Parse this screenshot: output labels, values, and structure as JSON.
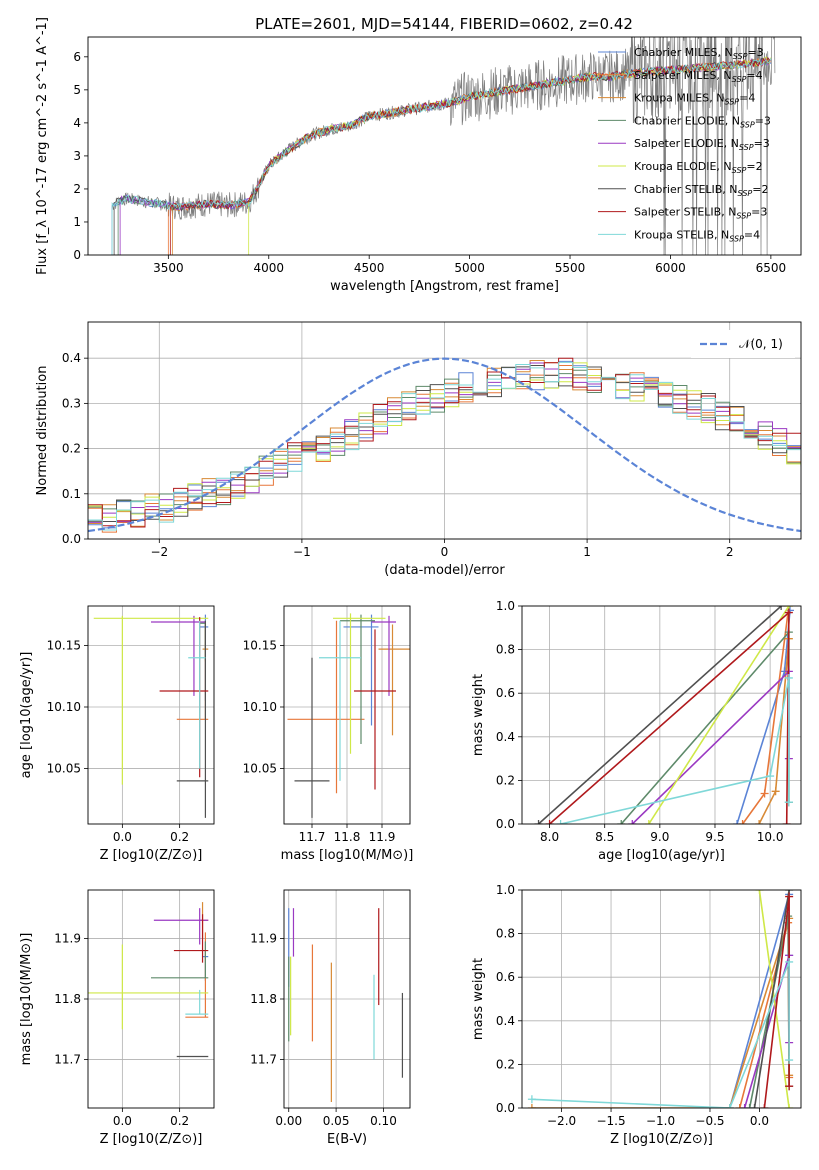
{
  "figure": {
    "title": "PLATE=2601, MJD=54144, FIBERID=0602, z=0.42"
  },
  "series": [
    {
      "name": "Chabrier MILES",
      "nssp": "3",
      "color": "#5b84d6"
    },
    {
      "name": "Salpeter MILES",
      "nssp": "4",
      "color": "#e7773a"
    },
    {
      "name": "Kroupa MILES",
      "nssp": "4",
      "color": "#d88a36"
    },
    {
      "name": "Chabrier ELODIE",
      "nssp": "3",
      "color": "#5e8a6a"
    },
    {
      "name": "Salpeter ELODIE",
      "nssp": "3",
      "color": "#9a39c2"
    },
    {
      "name": "Kroupa ELODIE",
      "nssp": "2",
      "color": "#cfe847"
    },
    {
      "name": "Chabrier STELIB",
      "nssp": "2",
      "color": "#505050"
    },
    {
      "name": "Salpeter STELIB",
      "nssp": "3",
      "color": "#b0191c"
    },
    {
      "name": "Kroupa STELIB",
      "nssp": "4",
      "color": "#7fd8d8"
    }
  ],
  "chart_data": [
    {
      "id": "spectrum",
      "type": "line",
      "title": "PLATE=2601, MJD=54144, FIBERID=0602, z=0.42",
      "xlabel": "wavelength [Angstrom, rest frame]",
      "ylabel": "Flux [f_λ 10^-17 erg cm^-2 s^-1 A^-1]",
      "xlim": [
        3100,
        6650
      ],
      "ylim": [
        0,
        6.6
      ],
      "xticks": [
        3500,
        4000,
        4500,
        5000,
        5500,
        6000,
        6500
      ],
      "yticks": [
        0,
        1,
        2,
        3,
        4,
        5,
        6
      ],
      "continuum": {
        "x": [
          3220,
          3260,
          3300,
          3400,
          3500,
          3550,
          3700,
          3800,
          3900,
          3950,
          4000,
          4100,
          4200,
          4300,
          4400,
          4500,
          4600,
          4700,
          4800,
          4900,
          5000,
          5100,
          5200,
          5300,
          5400,
          5500,
          5600,
          5700,
          5800,
          5900,
          6000,
          6100,
          6200,
          6300,
          6400,
          6500
        ],
        "y": [
          1.5,
          1.65,
          1.7,
          1.6,
          1.5,
          1.45,
          1.55,
          1.5,
          1.6,
          2.1,
          2.7,
          3.2,
          3.6,
          3.8,
          3.9,
          4.2,
          4.3,
          4.4,
          4.5,
          4.6,
          4.8,
          4.9,
          5.0,
          5.1,
          5.2,
          5.3,
          5.4,
          5.4,
          5.5,
          5.55,
          5.6,
          5.65,
          5.7,
          5.75,
          5.8,
          5.9
        ]
      },
      "legend_position": "upper right",
      "grid": false
    },
    {
      "id": "residuals",
      "type": "histogram",
      "xlabel": "(data-model)/error",
      "ylabel": "Normed distribution",
      "xlim": [
        -2.5,
        2.5
      ],
      "ylim": [
        0,
        0.48
      ],
      "xticks": [
        -2,
        -1,
        0,
        1,
        2
      ],
      "yticks": [
        0.0,
        0.1,
        0.2,
        0.3,
        0.4
      ],
      "bin_width": 0.1,
      "bin_start": -2.5,
      "base_values": [
        0.05,
        0.05,
        0.055,
        0.06,
        0.065,
        0.07,
        0.08,
        0.09,
        0.1,
        0.11,
        0.12,
        0.135,
        0.15,
        0.165,
        0.18,
        0.19,
        0.2,
        0.215,
        0.23,
        0.25,
        0.265,
        0.28,
        0.295,
        0.305,
        0.315,
        0.325,
        0.335,
        0.345,
        0.35,
        0.355,
        0.36,
        0.36,
        0.36,
        0.365,
        0.36,
        0.355,
        0.35,
        0.345,
        0.34,
        0.33,
        0.32,
        0.31,
        0.3,
        0.29,
        0.275,
        0.26,
        0.245,
        0.23,
        0.215,
        0.2,
        0.19,
        0.18,
        0.17,
        0.16,
        0.15,
        0.14,
        0.13,
        0.12,
        0.11,
        0.1,
        0.095,
        0.09,
        0.085,
        0.08,
        0.075,
        0.07,
        0.07,
        0.065,
        0.06,
        0.06
      ],
      "normal_label": "𝒩(0, 1)",
      "legend_position": "upper right",
      "grid": true
    },
    {
      "id": "age_vs_Z",
      "type": "errorbar",
      "xlabel": "Z [log10(Z/Z⊙)]",
      "ylabel": "age  [log10(age/yr)]",
      "xlim": [
        -0.12,
        0.32
      ],
      "ylim": [
        10.005,
        10.182
      ],
      "xticks": [
        0.0,
        0.2
      ],
      "yticks": [
        10.05,
        10.1,
        10.15
      ],
      "points": [
        {
          "x": 0.29,
          "y": 10.165,
          "xerr": [
            0.02,
            0.01
          ],
          "yerr": [
            0.06,
            0.01
          ]
        },
        {
          "x": 0.29,
          "y": 10.09,
          "xerr": [
            0.1,
            0.01
          ],
          "yerr": [
            0.0,
            0.08
          ]
        },
        {
          "x": 0.29,
          "y": 10.147,
          "xerr": [
            0.01,
            0.01
          ],
          "yerr": [
            0.01,
            0.02
          ]
        },
        {
          "x": 0.29,
          "y": 10.168,
          "xerr": [
            0.02,
            0.0
          ],
          "yerr": [
            0.03,
            0.002
          ]
        },
        {
          "x": 0.25,
          "y": 10.169,
          "xerr": [
            0.15,
            0.04
          ],
          "yerr": [
            0.06,
            0.005
          ]
        },
        {
          "x": 0.0,
          "y": 10.172,
          "xerr": [
            0.1,
            0.3
          ],
          "yerr": [
            0.135,
            0.002
          ]
        },
        {
          "x": 0.29,
          "y": 10.04,
          "xerr": [
            0.1,
            0.01
          ],
          "yerr": [
            0.03,
            0.13
          ]
        },
        {
          "x": 0.27,
          "y": 10.113,
          "xerr": [
            0.14,
            0.03
          ],
          "yerr": [
            0.07,
            0.06
          ]
        },
        {
          "x": 0.27,
          "y": 10.14,
          "xerr": [
            0.04,
            0.02
          ],
          "yerr": [
            0.09,
            0.03
          ]
        }
      ],
      "grid": true
    },
    {
      "id": "age_vs_mass",
      "type": "errorbar",
      "xlabel": "mass [log10(M/M⊙)]",
      "ylabel": "",
      "xlim": [
        11.62,
        11.98
      ],
      "ylim": [
        10.005,
        10.182
      ],
      "xticks": [
        11.7,
        11.8,
        11.9
      ],
      "yticks": [
        10.05,
        10.1,
        10.15
      ],
      "points": [
        {
          "x": 11.87,
          "y": 10.165,
          "xerr": [
            0.08,
            0.02
          ],
          "yerr": [
            0.08,
            0.01
          ]
        },
        {
          "x": 11.77,
          "y": 10.09,
          "xerr": [
            0.14,
            0.08
          ],
          "yerr": [
            0.06,
            0.08
          ]
        },
        {
          "x": 11.93,
          "y": 10.147,
          "xerr": [
            0.04,
            0.05
          ],
          "yerr": [
            0.07,
            0.02
          ]
        },
        {
          "x": 11.84,
          "y": 10.17,
          "xerr": [
            0.06,
            0.04
          ],
          "yerr": [
            0.1,
            0.005
          ]
        },
        {
          "x": 11.92,
          "y": 10.169,
          "xerr": [
            0.05,
            0.02
          ],
          "yerr": [
            0.06,
            0.005
          ]
        },
        {
          "x": 11.81,
          "y": 10.172,
          "xerr": [
            0.05,
            0.1
          ],
          "yerr": [
            0.11,
            0.004
          ]
        },
        {
          "x": 11.7,
          "y": 10.04,
          "xerr": [
            0.05,
            0.05
          ],
          "yerr": [
            0.03,
            0.1
          ]
        },
        {
          "x": 11.88,
          "y": 10.113,
          "xerr": [
            0.06,
            0.06
          ],
          "yerr": [
            0.08,
            0.05
          ]
        },
        {
          "x": 11.78,
          "y": 10.14,
          "xerr": [
            0.06,
            0.06
          ],
          "yerr": [
            0.1,
            0.03
          ]
        }
      ],
      "grid": true
    },
    {
      "id": "massweight_vs_age",
      "type": "line",
      "xlabel": "age  [log10(age/yr)]",
      "ylabel": "mass weight",
      "xlim": [
        7.75,
        10.28
      ],
      "ylim": [
        0,
        1
      ],
      "xticks": [
        8.0,
        8.5,
        9.0,
        9.5,
        10.0
      ],
      "yticks": [
        0.0,
        0.2,
        0.4,
        0.6,
        0.8,
        1.0
      ],
      "lines": [
        {
          "x": [
            9.7,
            10.13,
            10.18
          ],
          "y": [
            0.0,
            0.7,
            0.98
          ]
        },
        {
          "x": [
            9.75,
            9.95,
            10.17
          ],
          "y": [
            0.0,
            0.14,
            1.0
          ]
        },
        {
          "x": [
            9.9,
            10.05,
            10.17
          ],
          "y": [
            0.0,
            0.15,
            0.85
          ]
        },
        {
          "x": [
            8.65,
            10.17,
            10.17
          ],
          "y": [
            0.0,
            0.88,
            0.1
          ]
        },
        {
          "x": [
            8.75,
            10.17,
            10.17
          ],
          "y": [
            0.0,
            0.7,
            0.3
          ]
        },
        {
          "x": [
            8.9,
            10.17
          ],
          "y": [
            0.0,
            1.0
          ]
        },
        {
          "x": [
            7.9,
            10.1
          ],
          "y": [
            0.0,
            1.0
          ]
        },
        {
          "x": [
            8.0,
            10.17,
            10.15
          ],
          "y": [
            0.0,
            0.97,
            0.0
          ]
        },
        {
          "x": [
            8.1,
            10.0,
            10.17,
            10.17
          ],
          "y": [
            0.0,
            0.22,
            0.67,
            0.1
          ]
        }
      ],
      "grid": true
    },
    {
      "id": "mass_vs_Z",
      "type": "errorbar",
      "xlabel": "Z [log10(Z/Z⊙)]",
      "ylabel": "mass [log10(M/M⊙)]",
      "xlim": [
        -0.12,
        0.32
      ],
      "ylim": [
        11.62,
        11.98
      ],
      "xticks": [
        0.0,
        0.2
      ],
      "yticks": [
        11.7,
        11.8,
        11.9
      ],
      "points": [
        {
          "x": 0.29,
          "y": 11.87,
          "xerr": [
            0.01,
            0.01
          ],
          "yerr": [
            0.04,
            0.01
          ]
        },
        {
          "x": 0.29,
          "y": 11.77,
          "xerr": [
            0.07,
            0.01
          ],
          "yerr": [
            0.0,
            0.14
          ]
        },
        {
          "x": 0.28,
          "y": 11.93,
          "xerr": [
            0.01,
            0.02
          ],
          "yerr": [
            0.03,
            0.03
          ]
        },
        {
          "x": 0.29,
          "y": 11.835,
          "xerr": [
            0.19,
            0.01
          ],
          "yerr": [
            0.0,
            0.06
          ]
        },
        {
          "x": 0.27,
          "y": 11.93,
          "xerr": [
            0.16,
            0.03
          ],
          "yerr": [
            0.04,
            0.02
          ]
        },
        {
          "x": 0.0,
          "y": 11.81,
          "xerr": [
            0.12,
            0.3
          ],
          "yerr": [
            0.06,
            0.08
          ]
        },
        {
          "x": 0.29,
          "y": 11.705,
          "xerr": [
            0.1,
            0.01
          ],
          "yerr": [
            0.0,
            0.0
          ]
        },
        {
          "x": 0.28,
          "y": 11.88,
          "xerr": [
            0.1,
            0.02
          ],
          "yerr": [
            0.02,
            0.06
          ]
        },
        {
          "x": 0.27,
          "y": 11.775,
          "xerr": [
            0.05,
            0.03
          ],
          "yerr": [
            0.0,
            0.04
          ]
        }
      ],
      "grid": true
    },
    {
      "id": "mass_vs_ebv",
      "type": "errorbar",
      "xlabel": "E(B-V)",
      "ylabel": "",
      "xlim": [
        -0.005,
        0.128
      ],
      "ylim": [
        11.62,
        11.98
      ],
      "xticks": [
        0.0,
        0.05,
        0.1
      ],
      "yticks": [
        11.7,
        11.8,
        11.9
      ],
      "points": [
        {
          "x": 0.0,
          "y": 11.87,
          "xerr": [
            0,
            0
          ],
          "yerr": [
            0.05,
            0.08
          ]
        },
        {
          "x": 0.025,
          "y": 11.8,
          "xerr": [
            0,
            0
          ],
          "yerr": [
            0.07,
            0.09
          ]
        },
        {
          "x": 0.045,
          "y": 11.74,
          "xerr": [
            0,
            0
          ],
          "yerr": [
            0.11,
            0.12
          ]
        },
        {
          "x": 0.0,
          "y": 11.82,
          "xerr": [
            0,
            0
          ],
          "yerr": [
            0.09,
            0.05
          ]
        },
        {
          "x": 0.005,
          "y": 11.9,
          "xerr": [
            0,
            0
          ],
          "yerr": [
            0.03,
            0.05
          ]
        },
        {
          "x": 0.002,
          "y": 11.8,
          "xerr": [
            0,
            0
          ],
          "yerr": [
            0.06,
            0.07
          ]
        },
        {
          "x": 0.12,
          "y": 11.74,
          "xerr": [
            0,
            0
          ],
          "yerr": [
            0.07,
            0.07
          ]
        },
        {
          "x": 0.095,
          "y": 11.87,
          "xerr": [
            0,
            0
          ],
          "yerr": [
            0.08,
            0.08
          ]
        },
        {
          "x": 0.09,
          "y": 11.77,
          "xerr": [
            0,
            0
          ],
          "yerr": [
            0.07,
            0.07
          ]
        }
      ],
      "grid": true
    },
    {
      "id": "massweight_vs_Z",
      "type": "line",
      "xlabel": "Z [log10(Z/Z⊙)]",
      "ylabel": "mass weight",
      "xlim": [
        -2.4,
        0.42
      ],
      "ylim": [
        0,
        1
      ],
      "xticks": [
        -2.0,
        -1.5,
        -1.0,
        -0.5,
        0.0
      ],
      "yticks": [
        0.0,
        0.2,
        0.4,
        0.6,
        0.8,
        1.0
      ],
      "lines": [
        {
          "x": [
            -0.3,
            0.3,
            0.3
          ],
          "y": [
            0.0,
            0.98,
            0.7
          ]
        },
        {
          "x": [
            -0.2,
            0.29,
            0.3
          ],
          "y": [
            0.0,
            0.85,
            0.14
          ]
        },
        {
          "x": [
            -2.3,
            -0.3,
            0.3,
            0.3
          ],
          "y": [
            0.0,
            0.0,
            0.87,
            0.15
          ]
        },
        {
          "x": [
            -0.1,
            0.29,
            0.3
          ],
          "y": [
            0.0,
            0.88,
            0.1
          ]
        },
        {
          "x": [
            -0.15,
            0.3,
            0.3
          ],
          "y": [
            0.0,
            0.7,
            0.3
          ]
        },
        {
          "x": [
            0.0,
            0.3
          ],
          "y": [
            1.0,
            0.0
          ]
        },
        {
          "x": [
            -0.05,
            0.3
          ],
          "y": [
            0.0,
            1.0
          ]
        },
        {
          "x": [
            0.05,
            0.3,
            0.3
          ],
          "y": [
            0.0,
            0.97,
            0.1
          ]
        },
        {
          "x": [
            -2.3,
            -0.3,
            0.3,
            0.3
          ],
          "y": [
            0.04,
            0.0,
            0.67,
            0.22
          ]
        }
      ],
      "grid": true
    }
  ]
}
